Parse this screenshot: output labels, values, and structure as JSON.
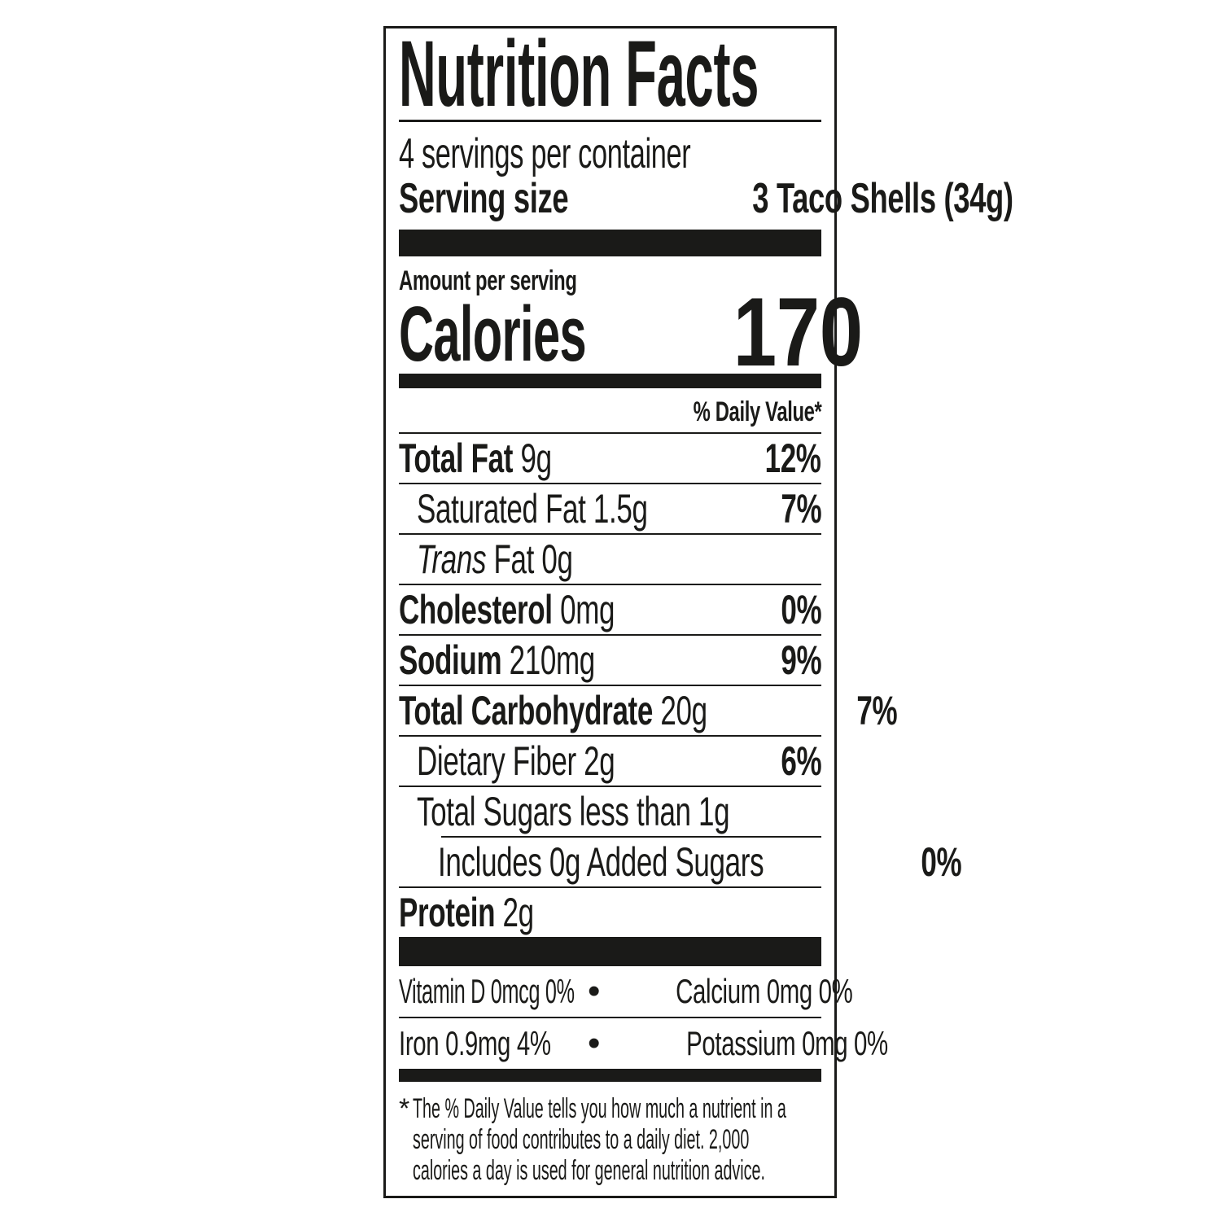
{
  "label": {
    "title": "Nutrition Facts",
    "servings_per_container": "4 servings per container",
    "serving_size_label": "Serving size",
    "serving_size_value": "3 Taco Shells (34g)",
    "amount_per_serving": "Amount per serving",
    "calories_label": "Calories",
    "calories_value": "170",
    "daily_value_header": "% Daily Value*",
    "rows": [
      {
        "name": "Total Fat",
        "amount": "9g",
        "dv": "12%"
      },
      {
        "name": "Saturated Fat",
        "amount": "1.5g",
        "dv": "7%"
      },
      {
        "name_italic": "Trans",
        "name": "Fat",
        "amount": "0g",
        "dv": ""
      },
      {
        "name": "Cholesterol",
        "amount": "0mg",
        "dv": "0%"
      },
      {
        "name": "Sodium",
        "amount": "210mg",
        "dv": "9%"
      },
      {
        "name": "Total Carbohydrate",
        "amount": "20g",
        "dv": "7%"
      },
      {
        "name": "Dietary Fiber",
        "amount": "2g",
        "dv": "6%"
      },
      {
        "name": "Total Sugars",
        "amount": "less than 1g",
        "dv": ""
      },
      {
        "name": "Includes 0g Added Sugars",
        "amount": "",
        "dv": "0%"
      },
      {
        "name": "Protein",
        "amount": "2g",
        "dv": ""
      }
    ],
    "micronutrients": {
      "bullet": "•",
      "row1_left": "Vitamin D 0mcg 0%",
      "row1_right": "Calcium 0mg 0%",
      "row2_left": "Iron 0.9mg 4%",
      "row2_right": "Potassium 0mg 0%"
    },
    "footnote": {
      "star": "*",
      "line1": "The % Daily Value tells you how much a nutrient in a",
      "line2": "serving of food contributes to a daily diet. 2,000",
      "line3": "calories a day is used for general nutrition advice."
    },
    "colors": {
      "ink": "#1a1a18",
      "paper": "#ffffff"
    }
  }
}
